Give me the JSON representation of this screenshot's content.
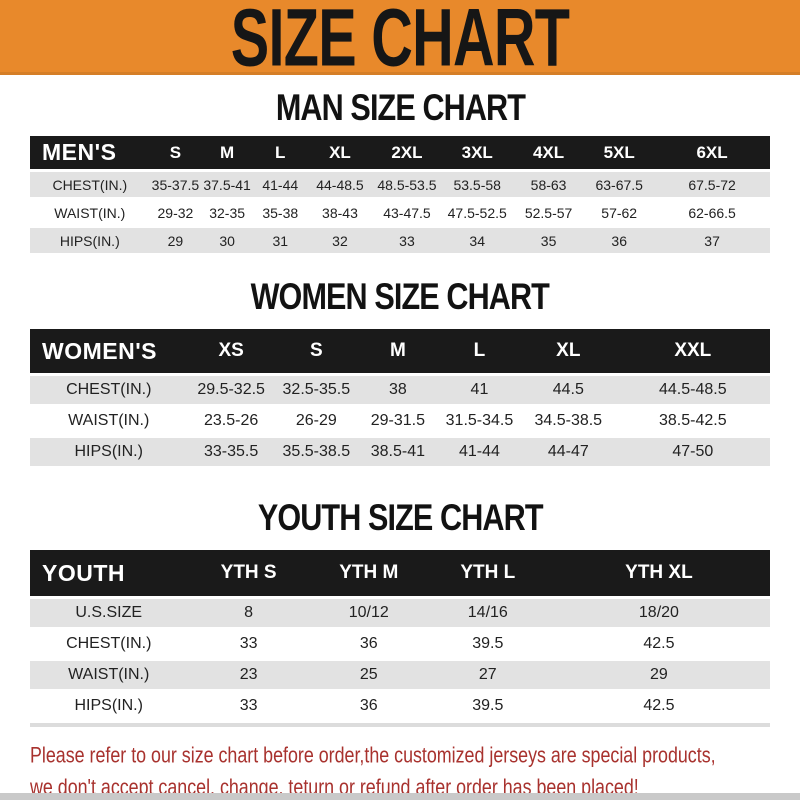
{
  "banner": {
    "title": "SIZE CHART"
  },
  "colors": {
    "banner_bg": "#E8892B",
    "header_bar": "#1A1A1A",
    "row_gray": "#E2E2E2",
    "disclaimer_red": "#A8322E"
  },
  "sections": [
    {
      "id": "men",
      "heading": "MAN SIZE CHART",
      "header": [
        "MEN'S",
        "S",
        "M",
        "L",
        "XL",
        "2XL",
        "3XL",
        "4XL",
        "5XL",
        "6XL"
      ],
      "rows": [
        {
          "label": "CHEST(IN.)",
          "values": [
            "35-37.5",
            "37.5-41",
            "41-44",
            "44-48.5",
            "48.5-53.5",
            "53.5-58",
            "58-63",
            "63-67.5",
            "67.5-72"
          ]
        },
        {
          "label": "WAIST(IN.)",
          "values": [
            "29-32",
            "32-35",
            "35-38",
            "38-43",
            "43-47.5",
            "47.5-52.5",
            "52.5-57",
            "57-62",
            "62-66.5"
          ]
        },
        {
          "label": "HIPS(IN.)",
          "values": [
            "29",
            "30",
            "31",
            "32",
            "33",
            "34",
            "35",
            "36",
            "37"
          ]
        }
      ]
    },
    {
      "id": "women",
      "heading": "WOMEN SIZE CHART",
      "header": [
        "WOMEN'S",
        "XS",
        "S",
        "M",
        "L",
        "XL",
        "XXL"
      ],
      "rows": [
        {
          "label": "CHEST(IN.)",
          "values": [
            "29.5-32.5",
            "32.5-35.5",
            "38",
            "41",
            "44.5",
            "44.5-48.5"
          ]
        },
        {
          "label": "WAIST(IN.)",
          "values": [
            "23.5-26",
            "26-29",
            "29-31.5",
            "31.5-34.5",
            "34.5-38.5",
            "38.5-42.5"
          ]
        },
        {
          "label": "HIPS(IN.)",
          "values": [
            "33-35.5",
            "35.5-38.5",
            "38.5-41",
            "41-44",
            "44-47",
            "47-50"
          ]
        }
      ]
    },
    {
      "id": "youth",
      "heading": "YOUTH SIZE CHART",
      "header": [
        "YOUTH",
        "YTH S",
        "YTH M",
        "YTH L",
        "YTH XL"
      ],
      "rows": [
        {
          "label": "U.S.SIZE",
          "values": [
            "8",
            "10/12",
            "14/16",
            "18/20"
          ]
        },
        {
          "label": "CHEST(IN.)",
          "values": [
            "33",
            "36",
            "39.5",
            "42.5"
          ]
        },
        {
          "label": "WAIST(IN.)",
          "values": [
            "23",
            "25",
            "27",
            "29"
          ]
        },
        {
          "label": "HIPS(IN.)",
          "values": [
            "33",
            "36",
            "39.5",
            "42.5"
          ]
        }
      ]
    }
  ],
  "disclaimer": {
    "lines": [
      "Please refer to our size chart before order,the customized jerseys are special products,",
      "we don't accept cancel, change, teturn or refund after order has been placed!"
    ]
  }
}
